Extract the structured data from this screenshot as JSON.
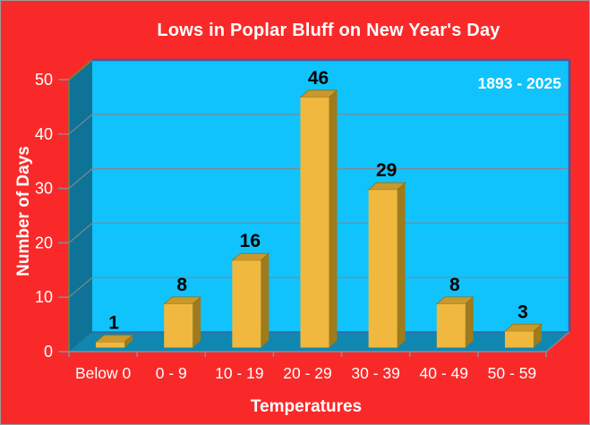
{
  "chart_data": {
    "type": "bar",
    "title": "Lows in Poplar Bluff on New Year's Day",
    "annotation": "1893 - 2025",
    "categories": [
      "Below 0",
      "0 - 9",
      "10 - 19",
      "20 - 29",
      "30 - 39",
      "40 - 49",
      "50 - 59"
    ],
    "values": [
      1,
      8,
      16,
      46,
      29,
      8,
      3
    ],
    "xlabel": "Temperatures",
    "ylabel": "Number of Days",
    "ylim": [
      0,
      50
    ],
    "yticks": [
      0,
      10,
      20,
      30,
      40,
      50
    ],
    "legend": "none",
    "grid": true,
    "style": "3d-column",
    "colors": {
      "background": "#fa2929",
      "plot_bg": "#10c3fc",
      "wall": "#0e7396",
      "floor": "#0f87b0",
      "bar_front": "#f0b83e",
      "bar_top": "#c7992e",
      "bar_side": "#9e7b1d",
      "bar_edge": "#8f6f15",
      "grid": "#85868f",
      "frame": "#4458a0",
      "wall_edge": "#7c7c3a",
      "axis": "#8c8c94",
      "text": "#ffffff",
      "value_label": "#000000"
    }
  }
}
